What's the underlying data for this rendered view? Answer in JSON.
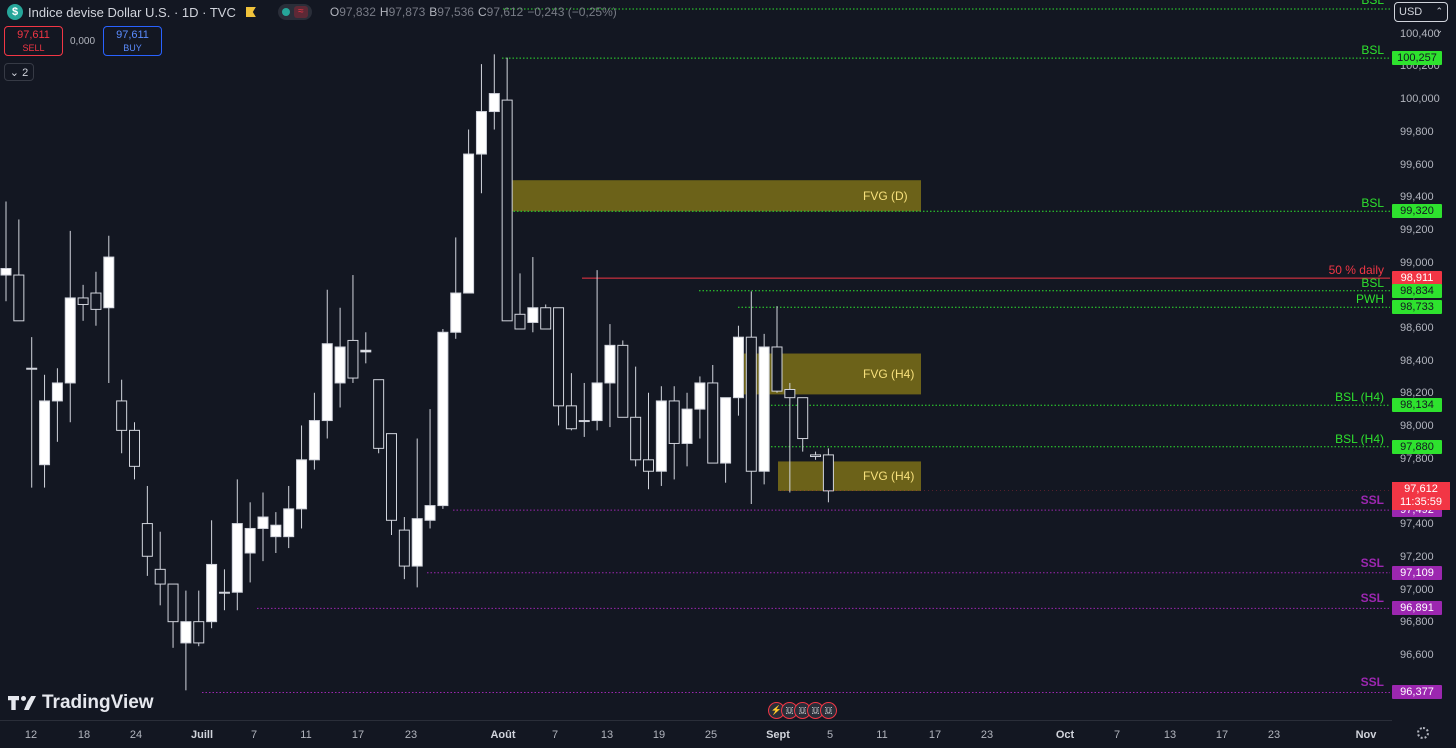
{
  "header": {
    "symbol_icon": "$",
    "title": "Indice devise Dollar U.S. · 1D · TVC",
    "wave_icon": "≈",
    "ohlc": [
      {
        "k": "O",
        "v": "97,832"
      },
      {
        "k": "H",
        "v": "97,873"
      },
      {
        "k": "B",
        "v": "97,536"
      },
      {
        "k": "C",
        "v": "97,612"
      },
      {
        "k": "",
        "v": "−0,243 (−0,25%)"
      }
    ],
    "ohlc_color": "#f23645"
  },
  "trade": {
    "sell_price": "97,611",
    "sell_label": "SELL",
    "spread": "0,000",
    "buy_price": "97,611",
    "buy_label": "BUY",
    "collapse_label": "2"
  },
  "currency": "USD",
  "logo_text": "TradingView",
  "last_price": {
    "value": "97,612",
    "countdown": "11:35:59",
    "color": "#f23645"
  },
  "colors": {
    "background": "#131722",
    "candle_body": "#ffffff",
    "wick": "#d1d4dc",
    "fvg": "#7d7018",
    "fvg_text": "#f7e07b",
    "bsl": "#2ee22e",
    "ssl": "#9c27b0",
    "pwh": "#2ee22e",
    "daily50": "#f23645"
  },
  "chart_data": {
    "type": "candlestick",
    "title": "Indice devise Dollar U.S. · 1D · TVC",
    "y_axis": {
      "ticks": [
        "100,400",
        "100,200",
        "100,000",
        "99,800",
        "99,600",
        "99,400",
        "99,200",
        "99,000",
        "98,800",
        "98,600",
        "98,400",
        "98,200",
        "98,000",
        "97,800",
        "97,400",
        "97,200",
        "97,000",
        "96,800",
        "96,600"
      ],
      "ylim": [
        96.3,
        100.75
      ]
    },
    "x_axis": {
      "ticks": [
        {
          "label": "12",
          "bold": false
        },
        {
          "label": "18",
          "bold": false
        },
        {
          "label": "24",
          "bold": false
        },
        {
          "label": "Juill",
          "bold": true
        },
        {
          "label": "7",
          "bold": false
        },
        {
          "label": "11",
          "bold": false
        },
        {
          "label": "17",
          "bold": false
        },
        {
          "label": "23",
          "bold": false
        },
        {
          "label": "Août",
          "bold": true
        },
        {
          "label": "7",
          "bold": false
        },
        {
          "label": "13",
          "bold": false
        },
        {
          "label": "19",
          "bold": false
        },
        {
          "label": "25",
          "bold": false
        },
        {
          "label": "Sept",
          "bold": true
        },
        {
          "label": "5",
          "bold": false
        },
        {
          "label": "11",
          "bold": false
        },
        {
          "label": "17",
          "bold": false
        },
        {
          "label": "23",
          "bold": false
        },
        {
          "label": "Oct",
          "bold": true
        },
        {
          "label": "7",
          "bold": false
        },
        {
          "label": "13",
          "bold": false
        },
        {
          "label": "17",
          "bold": false
        },
        {
          "label": "23",
          "bold": false
        },
        {
          "label": "Nov",
          "bold": true
        }
      ]
    },
    "candles": [
      {
        "o": 98.93,
        "h": 99.38,
        "l": 98.77,
        "c": 98.97
      },
      {
        "o": 98.93,
        "h": 99.27,
        "l": 98.65,
        "c": 98.65
      },
      {
        "o": 98.36,
        "h": 98.55,
        "l": 97.63,
        "c": 98.36
      },
      {
        "o": 97.77,
        "h": 98.32,
        "l": 97.63,
        "c": 98.16
      },
      {
        "o": 98.16,
        "h": 98.36,
        "l": 97.91,
        "c": 98.27
      },
      {
        "o": 98.27,
        "h": 99.2,
        "l": 98.03,
        "c": 98.79
      },
      {
        "o": 98.79,
        "h": 98.87,
        "l": 98.65,
        "c": 98.75
      },
      {
        "o": 98.82,
        "h": 98.95,
        "l": 98.62,
        "c": 98.72
      },
      {
        "o": 98.73,
        "h": 99.17,
        "l": 98.27,
        "c": 99.04
      },
      {
        "o": 98.16,
        "h": 98.29,
        "l": 97.84,
        "c": 97.98
      },
      {
        "o": 97.98,
        "h": 98.03,
        "l": 97.68,
        "c": 97.76
      },
      {
        "o": 97.41,
        "h": 97.64,
        "l": 97.09,
        "c": 97.21
      },
      {
        "o": 97.13,
        "h": 97.36,
        "l": 96.91,
        "c": 97.04
      },
      {
        "o": 97.04,
        "h": 97.04,
        "l": 96.65,
        "c": 96.81
      },
      {
        "o": 96.68,
        "h": 97.0,
        "l": 96.39,
        "c": 96.81
      },
      {
        "o": 96.81,
        "h": 97.0,
        "l": 96.66,
        "c": 96.68
      },
      {
        "o": 96.81,
        "h": 97.43,
        "l": 96.77,
        "c": 97.16
      },
      {
        "o": 96.99,
        "h": 97.13,
        "l": 96.88,
        "c": 96.99
      },
      {
        "o": 96.99,
        "h": 97.68,
        "l": 96.88,
        "c": 97.41
      },
      {
        "o": 97.23,
        "h": 97.54,
        "l": 97.05,
        "c": 97.38
      },
      {
        "o": 97.38,
        "h": 97.6,
        "l": 97.18,
        "c": 97.45
      },
      {
        "o": 97.33,
        "h": 97.48,
        "l": 97.23,
        "c": 97.4
      },
      {
        "o": 97.33,
        "h": 97.64,
        "l": 97.26,
        "c": 97.5
      },
      {
        "o": 97.5,
        "h": 98.01,
        "l": 97.38,
        "c": 97.8
      },
      {
        "o": 97.8,
        "h": 98.21,
        "l": 97.74,
        "c": 98.04
      },
      {
        "o": 98.04,
        "h": 98.84,
        "l": 97.93,
        "c": 98.51
      },
      {
        "o": 98.27,
        "h": 98.73,
        "l": 98.12,
        "c": 98.49
      },
      {
        "o": 98.53,
        "h": 98.93,
        "l": 98.27,
        "c": 98.3
      },
      {
        "o": 98.46,
        "h": 98.58,
        "l": 98.39,
        "c": 98.47
      },
      {
        "o": 98.29,
        "h": 98.29,
        "l": 97.84,
        "c": 97.87
      },
      {
        "o": 97.96,
        "h": 97.96,
        "l": 97.34,
        "c": 97.43
      },
      {
        "o": 97.37,
        "h": 97.45,
        "l": 97.07,
        "c": 97.15
      },
      {
        "o": 97.15,
        "h": 97.93,
        "l": 97.02,
        "c": 97.44
      },
      {
        "o": 97.43,
        "h": 98.11,
        "l": 97.38,
        "c": 97.52
      },
      {
        "o": 97.52,
        "h": 98.6,
        "l": 97.5,
        "c": 98.58
      },
      {
        "o": 98.58,
        "h": 99.16,
        "l": 98.54,
        "c": 98.82
      },
      {
        "o": 98.82,
        "h": 99.82,
        "l": 98.83,
        "c": 99.67
      },
      {
        "o": 99.67,
        "h": 100.22,
        "l": 99.43,
        "c": 99.93
      },
      {
        "o": 99.93,
        "h": 100.28,
        "l": 99.82,
        "c": 100.04
      },
      {
        "o": 100.0,
        "h": 100.26,
        "l": 98.65,
        "c": 98.65
      },
      {
        "o": 98.69,
        "h": 98.94,
        "l": 98.61,
        "c": 98.6
      },
      {
        "o": 98.64,
        "h": 99.04,
        "l": 98.58,
        "c": 98.73
      },
      {
        "o": 98.73,
        "h": 98.75,
        "l": 98.6,
        "c": 98.6
      },
      {
        "o": 98.73,
        "h": 98.73,
        "l": 98.01,
        "c": 98.13
      },
      {
        "o": 98.13,
        "h": 98.33,
        "l": 97.98,
        "c": 97.99
      },
      {
        "o": 98.04,
        "h": 98.27,
        "l": 97.94,
        "c": 98.04
      },
      {
        "o": 98.04,
        "h": 98.96,
        "l": 97.98,
        "c": 98.27
      },
      {
        "o": 98.27,
        "h": 98.63,
        "l": 98.0,
        "c": 98.5
      },
      {
        "o": 98.5,
        "h": 98.53,
        "l": 98.06,
        "c": 98.06
      },
      {
        "o": 98.06,
        "h": 98.37,
        "l": 97.76,
        "c": 97.8
      },
      {
        "o": 97.8,
        "h": 98.21,
        "l": 97.62,
        "c": 97.73
      },
      {
        "o": 97.73,
        "h": 98.25,
        "l": 97.64,
        "c": 98.16
      },
      {
        "o": 98.16,
        "h": 98.25,
        "l": 97.68,
        "c": 97.9
      },
      {
        "o": 97.9,
        "h": 98.21,
        "l": 97.76,
        "c": 98.11
      },
      {
        "o": 98.11,
        "h": 98.31,
        "l": 97.93,
        "c": 98.27
      },
      {
        "o": 98.27,
        "h": 98.38,
        "l": 97.78,
        "c": 97.78
      },
      {
        "o": 97.78,
        "h": 98.15,
        "l": 97.66,
        "c": 98.18
      },
      {
        "o": 98.18,
        "h": 98.62,
        "l": 98.07,
        "c": 98.55
      },
      {
        "o": 98.55,
        "h": 98.83,
        "l": 97.53,
        "c": 97.73
      },
      {
        "o": 97.73,
        "h": 98.57,
        "l": 97.65,
        "c": 98.49
      },
      {
        "o": 98.49,
        "h": 98.74,
        "l": 98.21,
        "c": 98.22
      },
      {
        "o": 98.23,
        "h": 98.27,
        "l": 97.6,
        "c": 98.18
      },
      {
        "o": 98.18,
        "h": 98.15,
        "l": 97.85,
        "c": 97.93
      },
      {
        "o": 97.83,
        "h": 97.85,
        "l": 97.8,
        "c": 97.82
      },
      {
        "o": 97.83,
        "h": 97.87,
        "l": 97.54,
        "c": 97.61
      }
    ],
    "zones": [
      {
        "label": "FVG (D)",
        "top": 99.51,
        "bottom": 99.32
      },
      {
        "label": "FVG (H4)",
        "top": 98.45,
        "bottom": 98.2
      },
      {
        "label": "FVG (H4)",
        "top": 97.79,
        "bottom": 97.61
      }
    ],
    "levels": [
      {
        "label": "BSL",
        "value": "100,257",
        "kind": "bsl"
      },
      {
        "label": "BSL",
        "value": "99,320",
        "kind": "bsl"
      },
      {
        "label": "50 % daily",
        "value": "98,911",
        "kind": "daily50"
      },
      {
        "label": "BSL",
        "value": "98,834",
        "kind": "bsl"
      },
      {
        "label": "PWH",
        "value": "98,733",
        "kind": "pwh"
      },
      {
        "label": "BSL (H4)",
        "value": "98,134",
        "kind": "bsl"
      },
      {
        "label": "BSL (H4)",
        "value": "97,880",
        "kind": "bsl"
      },
      {
        "label": "SSL",
        "value": "97,492",
        "kind": "ssl"
      },
      {
        "label": "SSL",
        "value": "97,109",
        "kind": "ssl"
      },
      {
        "label": "SSL",
        "value": "96,891",
        "kind": "ssl"
      },
      {
        "label": "SSL",
        "value": "96,377",
        "kind": "ssl"
      }
    ],
    "top_level": {
      "label": "BSL",
      "kind": "bsl"
    }
  }
}
